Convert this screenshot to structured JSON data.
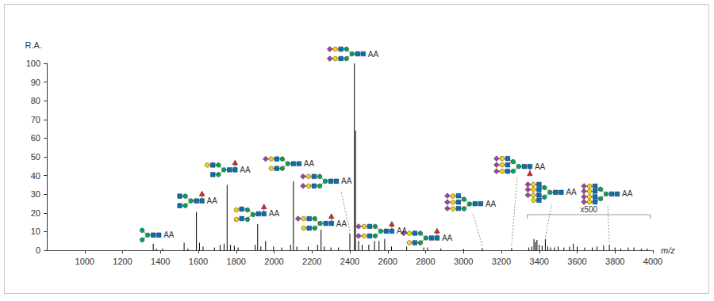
{
  "chart_data": {
    "type": "bar",
    "xlabel": "m/z",
    "ylabel": "R.A.",
    "color": "#000000",
    "grid": false,
    "xlim": [
      800,
      4000
    ],
    "xticks": [
      1000,
      1200,
      1400,
      1600,
      1800,
      2000,
      2200,
      2400,
      2600,
      2800,
      3000,
      3200,
      3400,
      3600,
      3800,
      4000
    ],
    "ylim": [
      0,
      100
    ],
    "yticks": [
      0,
      10,
      20,
      30,
      40,
      50,
      60,
      70,
      80,
      90,
      100
    ],
    "x": [
      1362,
      1378,
      1412,
      1525,
      1545,
      1590,
      1606,
      1625,
      1685,
      1715,
      1736,
      1752,
      1770,
      1790,
      1810,
      1900,
      1913,
      1930,
      1955,
      1997,
      2040,
      2087,
      2102,
      2120,
      2180,
      2230,
      2248,
      2265,
      2300,
      2340,
      2400,
      2424,
      2430,
      2446,
      2465,
      2500,
      2530,
      2554,
      2584,
      2620,
      2700,
      2790,
      2810,
      2880,
      3000,
      3099,
      3254
    ],
    "values": [
      3.5,
      1,
      1,
      4,
      1,
      20.5,
      4,
      2,
      1.5,
      3,
      3.5,
      35,
      3,
      2.5,
      1.5,
      3,
      14,
      2,
      5,
      2,
      1.5,
      3,
      37,
      2,
      2,
      3,
      11,
      2,
      1.5,
      1.5,
      9,
      100,
      64,
      5,
      3,
      3,
      5,
      5,
      6,
      2,
      2,
      1.5,
      1.5,
      1,
      0.8,
      1.2,
      1.2
    ],
    "magnified": {
      "label": "x500",
      "xrange": [
        3337,
        3987
      ],
      "x": [
        3345,
        3360,
        3372,
        3380,
        3388,
        3400,
        3415,
        3432,
        3445,
        3460,
        3480,
        3500,
        3530,
        3560,
        3580,
        3600,
        3640,
        3680,
        3705,
        3740,
        3770,
        3800,
        3830,
        3870,
        3900,
        3940,
        3970
      ],
      "values": [
        1.5,
        2,
        6,
        4.5,
        5.5,
        3,
        2.5,
        6,
        2,
        1.5,
        1.5,
        2,
        1.5,
        2,
        3.5,
        2,
        1.5,
        1.5,
        2,
        2.5,
        3,
        1.5,
        1,
        1.5,
        1.5,
        1,
        1
      ]
    },
    "annotations": [
      {
        "x": 1362,
        "y": 3.5,
        "text": "AA"
      },
      {
        "x": 1590,
        "y": 20.5,
        "text": "AA"
      },
      {
        "x": 1752,
        "y": 35,
        "text": "AA"
      },
      {
        "x": 1913,
        "y": 14,
        "text": "AA"
      },
      {
        "x": 2102,
        "y": 37,
        "text": "AA"
      },
      {
        "x": 2400,
        "y": 9,
        "text": "AA"
      },
      {
        "x": 2248,
        "y": 11,
        "text": "AA"
      },
      {
        "x": 2424,
        "y": 100,
        "text": "AA"
      },
      {
        "x": 2584,
        "y": 6,
        "text": "AA"
      },
      {
        "x": 2810,
        "y": 1.5,
        "text": "AA"
      },
      {
        "x": 3099,
        "y": 1.2,
        "text": "AA"
      },
      {
        "x": 3254,
        "y": 1.2,
        "text": "AA"
      },
      {
        "x": 3432,
        "y": 6,
        "text": "AA"
      },
      {
        "x": 3770,
        "y": 3,
        "text": "AA"
      }
    ]
  }
}
